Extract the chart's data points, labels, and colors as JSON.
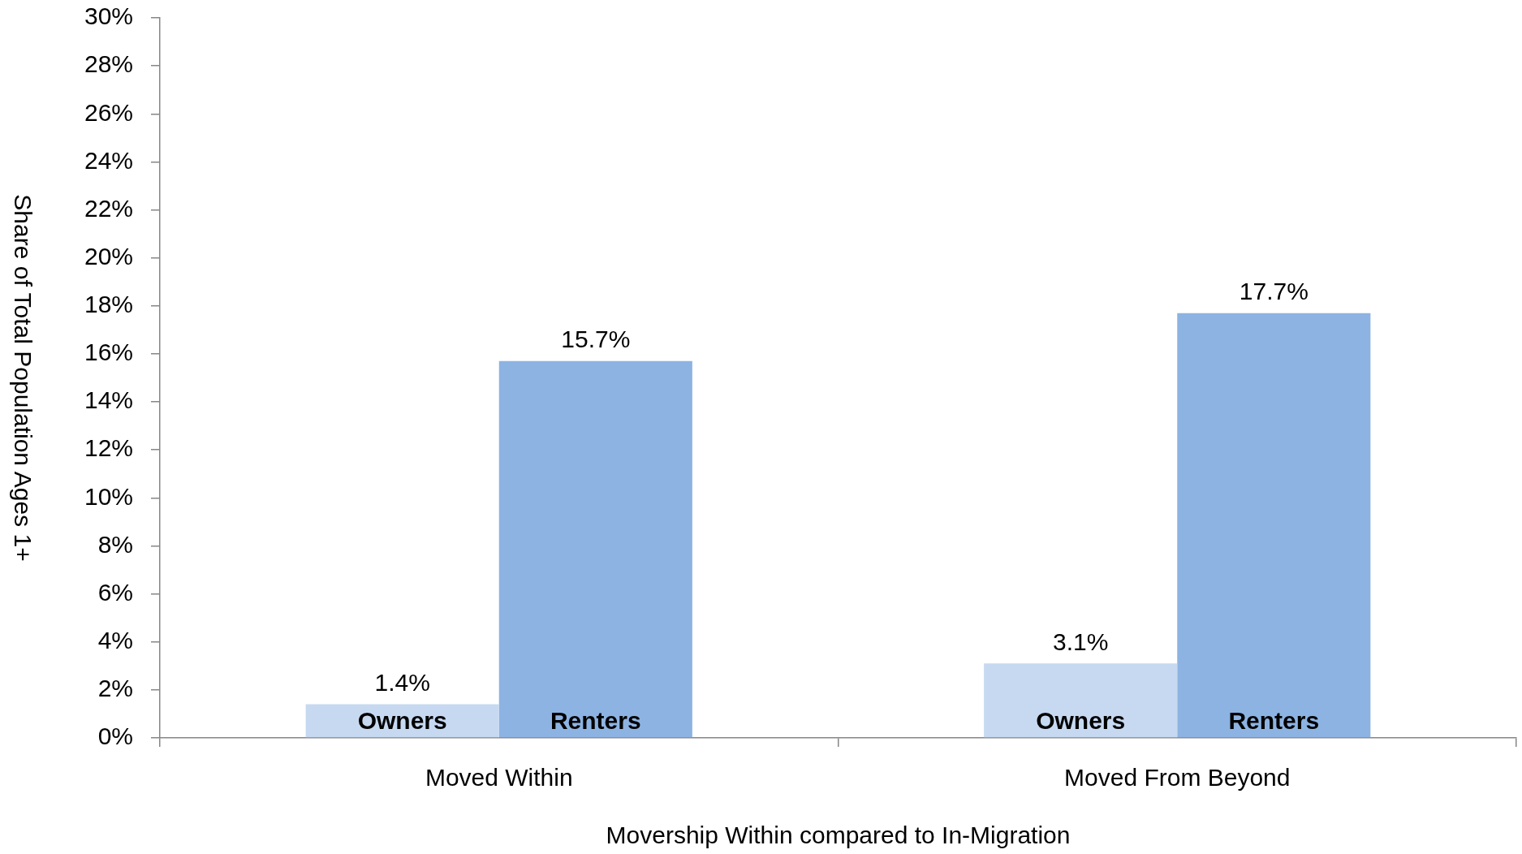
{
  "chart_data": {
    "type": "bar",
    "xlabel": "Movership Within compared to In-Migration",
    "ylabel": "Share of Total Population Ages 1+",
    "categories": [
      "Moved Within",
      "Moved From Beyond"
    ],
    "series": [
      {
        "name": "Owners",
        "color": "#c6d9f1",
        "values": [
          1.4,
          3.1
        ],
        "value_labels": [
          "1.4%",
          "3.1%"
        ]
      },
      {
        "name": "Renters",
        "color": "#8db3e2",
        "values": [
          15.7,
          17.7
        ],
        "value_labels": [
          "15.7%",
          "17.7%"
        ]
      }
    ],
    "ylim": [
      0,
      30
    ],
    "yticks": [
      {
        "value": 0,
        "label": "0%"
      },
      {
        "value": 2,
        "label": "2%"
      },
      {
        "value": 4,
        "label": "4%"
      },
      {
        "value": 6,
        "label": "6%"
      },
      {
        "value": 8,
        "label": "8%"
      },
      {
        "value": 10,
        "label": "10%"
      },
      {
        "value": 12,
        "label": "12%"
      },
      {
        "value": 14,
        "label": "14%"
      },
      {
        "value": 16,
        "label": "16%"
      },
      {
        "value": 18,
        "label": "18%"
      },
      {
        "value": 20,
        "label": "20%"
      },
      {
        "value": 22,
        "label": "22%"
      },
      {
        "value": 24,
        "label": "24%"
      },
      {
        "value": 26,
        "label": "26%"
      },
      {
        "value": 28,
        "label": "28%"
      },
      {
        "value": 30,
        "label": "30%"
      }
    ],
    "grid": false,
    "legend": false
  }
}
